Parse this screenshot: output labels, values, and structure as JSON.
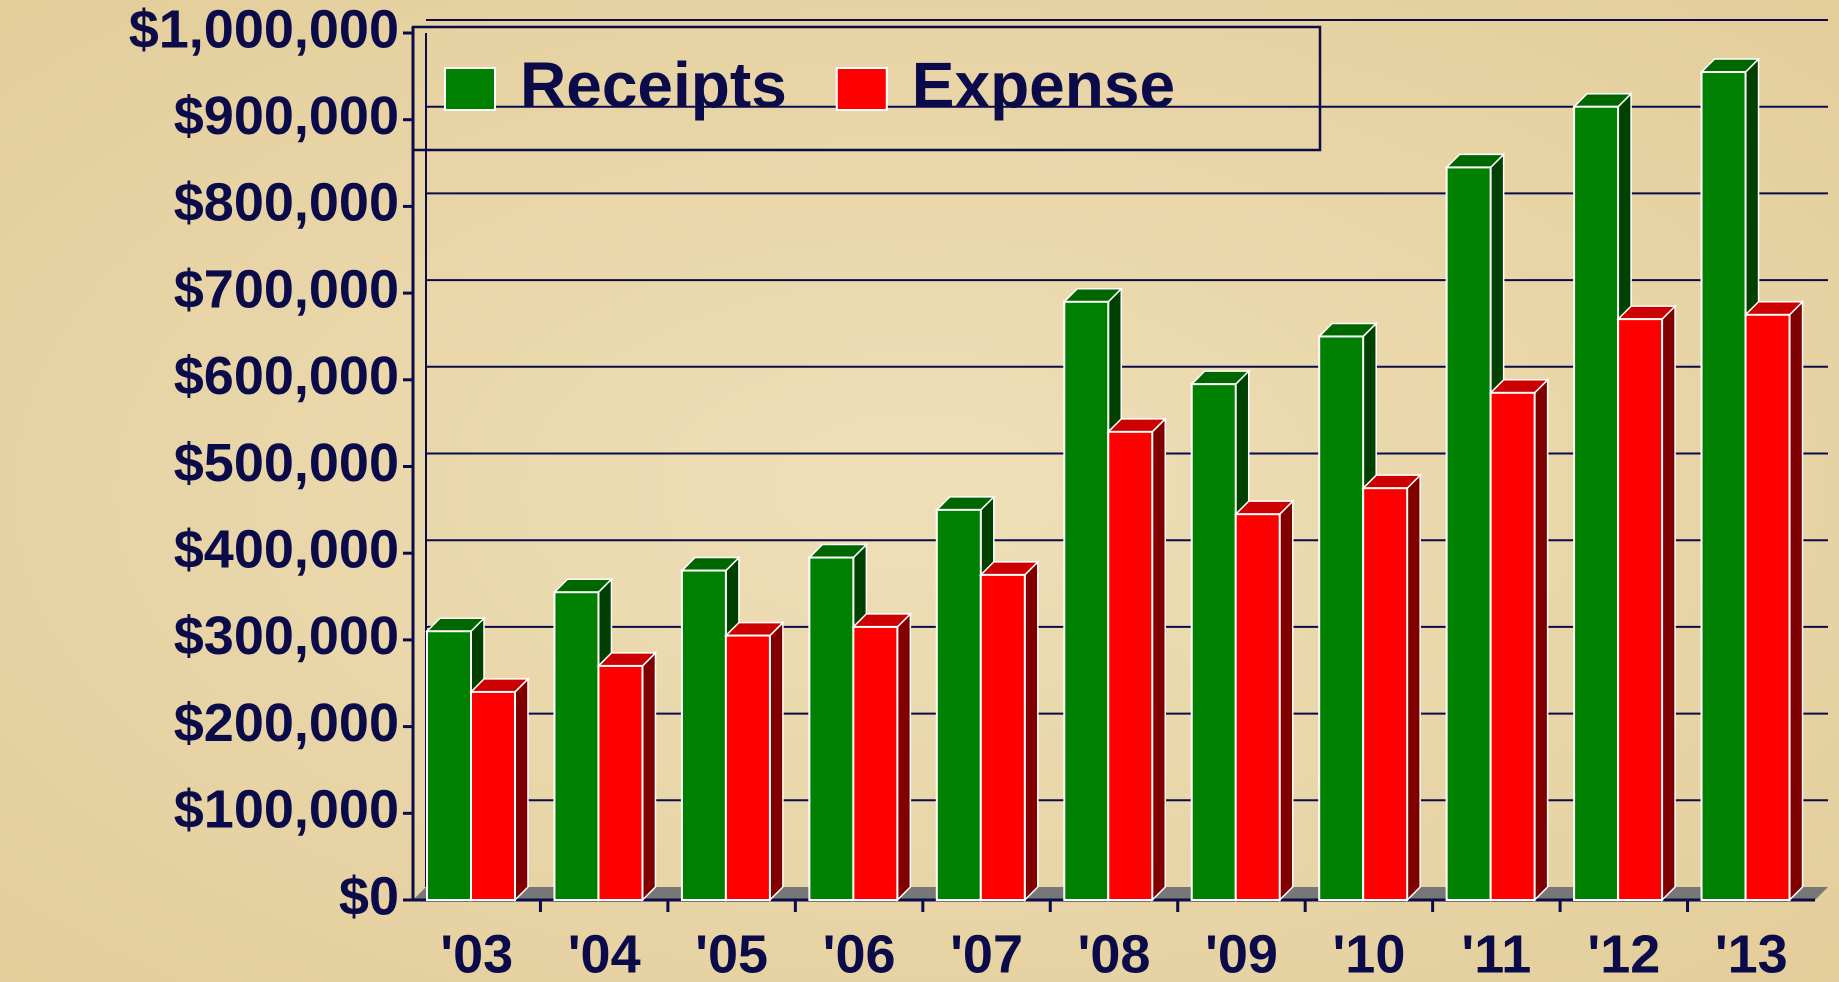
{
  "chart_data": {
    "type": "bar3d",
    "categories": [
      "'03",
      "'04",
      "'05",
      "'06",
      "'07",
      "'08",
      "'09",
      "'10",
      "'11",
      "'12",
      "'13"
    ],
    "series": [
      {
        "name": "Receipts",
        "color": "#008000",
        "values": [
          310000,
          355000,
          380000,
          395000,
          450000,
          690000,
          595000,
          650000,
          845000,
          915000,
          955000
        ]
      },
      {
        "name": "Expense",
        "color": "#ff0000",
        "values": [
          240000,
          270000,
          305000,
          315000,
          375000,
          540000,
          445000,
          475000,
          585000,
          670000,
          675000
        ]
      }
    ],
    "ylim": [
      0,
      1000000
    ],
    "yticks": [
      {
        "value": 0,
        "label": "$0"
      },
      {
        "value": 100000,
        "label": "$100,000"
      },
      {
        "value": 200000,
        "label": "$200,000"
      },
      {
        "value": 300000,
        "label": "$300,000"
      },
      {
        "value": 400000,
        "label": "$400,000"
      },
      {
        "value": 500000,
        "label": "$500,000"
      },
      {
        "value": 600000,
        "label": "$600,000"
      },
      {
        "value": 700000,
        "label": "$700,000"
      },
      {
        "value": 800000,
        "label": "$800,000"
      },
      {
        "value": 900000,
        "label": "$900,000"
      },
      {
        "value": 1000000,
        "label": "$1,000,000"
      }
    ],
    "grid": true,
    "legend": "top-left"
  }
}
